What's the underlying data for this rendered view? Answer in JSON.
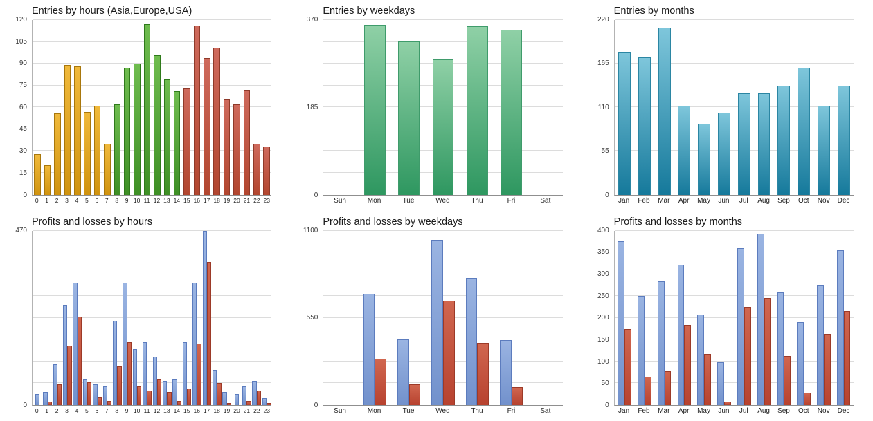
{
  "page": {
    "background": "#ffffff"
  },
  "chart_data": [
    {
      "type": "bar",
      "title": "Entries by hours (Asia,Europe,USA)",
      "categories": [
        "0",
        "1",
        "2",
        "3",
        "4",
        "5",
        "6",
        "7",
        "8",
        "9",
        "10",
        "11",
        "12",
        "13",
        "14",
        "15",
        "16",
        "17",
        "18",
        "19",
        "20",
        "21",
        "22",
        "23"
      ],
      "series": [
        {
          "name": "Entries",
          "values": [
            28,
            20,
            56,
            89,
            88,
            57,
            61,
            35,
            62,
            87,
            90,
            117,
            96,
            79,
            71,
            73,
            116,
            94,
            101,
            66,
            62,
            72,
            35,
            33
          ]
        }
      ],
      "palette": [
        {
          "top": "#F0B93B",
          "bottom": "#D0930F",
          "border": "#A8770C"
        },
        {
          "top": "#6FBC4F",
          "bottom": "#3E8F25",
          "border": "#2F7A1B"
        },
        {
          "top": "#CE6A5C",
          "bottom": "#B2462F",
          "border": "#8E3A2A"
        }
      ],
      "color_index": [
        0,
        0,
        0,
        0,
        0,
        0,
        0,
        0,
        1,
        1,
        1,
        1,
        1,
        1,
        1,
        2,
        2,
        2,
        2,
        2,
        2,
        2,
        2,
        2
      ],
      "ylim": [
        0,
        120
      ],
      "ticks": [
        0,
        15,
        30,
        45,
        60,
        75,
        90,
        105,
        120
      ],
      "grid_divisions": 8,
      "xlabel": "",
      "ylabel": "",
      "legend": "none",
      "grid": "horizontal"
    },
    {
      "type": "bar",
      "title": "Entries by weekdays",
      "categories": [
        "Sun",
        "Mon",
        "Tue",
        "Wed",
        "Thu",
        "Fri",
        "Sat"
      ],
      "series": [
        {
          "name": "Entries",
          "values": [
            0,
            360,
            325,
            287,
            357,
            350,
            0
          ],
          "style": {
            "top": "#8FD0A6",
            "bottom": "#2E9760",
            "border": "#3F9B6B"
          }
        }
      ],
      "ylim": [
        0,
        370
      ],
      "ticks": [
        0,
        185,
        370
      ],
      "grid_divisions": 8,
      "xlabel": "",
      "ylabel": "",
      "legend": "none",
      "grid": "horizontal"
    },
    {
      "type": "bar",
      "title": "Entries by months",
      "categories": [
        "Jan",
        "Feb",
        "Mar",
        "Apr",
        "May",
        "Jun",
        "Jul",
        "Aug",
        "Sep",
        "Oct",
        "Nov",
        "Dec"
      ],
      "series": [
        {
          "name": "Entries",
          "values": [
            180,
            173,
            210,
            112,
            89,
            103,
            128,
            128,
            137,
            160,
            112,
            137
          ],
          "style": {
            "top": "#7EC6DB",
            "bottom": "#15799B",
            "border": "#2B86A3"
          }
        }
      ],
      "ylim": [
        0,
        220
      ],
      "ticks": [
        0,
        55,
        110,
        165,
        220
      ],
      "grid_divisions": 4,
      "xlabel": "",
      "ylabel": "",
      "legend": "none",
      "grid": "horizontal"
    },
    {
      "type": "bar",
      "title": "Profits and losses by hours",
      "categories": [
        "0",
        "1",
        "2",
        "3",
        "4",
        "5",
        "6",
        "7",
        "8",
        "9",
        "10",
        "11",
        "12",
        "13",
        "14",
        "15",
        "16",
        "17",
        "18",
        "19",
        "20",
        "21",
        "22",
        "23"
      ],
      "series": [
        {
          "name": "Profits",
          "values": [
            30,
            35,
            110,
            270,
            330,
            70,
            55,
            50,
            228,
            330,
            150,
            170,
            130,
            65,
            70,
            170,
            330,
            470,
            95,
            35,
            30,
            50,
            65,
            18
          ],
          "style": {
            "top": "#9AB4E2",
            "bottom": "#7291CC",
            "border": "#5C7CBE"
          }
        },
        {
          "name": "Losses",
          "values": [
            0,
            10,
            55,
            160,
            238,
            62,
            20,
            12,
            105,
            170,
            50,
            40,
            70,
            35,
            12,
            45,
            165,
            385,
            60,
            6,
            0,
            12,
            40,
            6
          ],
          "style": {
            "top": "#D0664F",
            "bottom": "#B7422F",
            "border": "#9C3A28"
          }
        }
      ],
      "ylim": [
        0,
        470
      ],
      "ticks": [
        0,
        470
      ],
      "grid_divisions": 8,
      "xlabel": "",
      "ylabel": "",
      "legend": "none",
      "grid": "horizontal"
    },
    {
      "type": "bar",
      "title": "Profits and losses by weekdays",
      "categories": [
        "Sun",
        "Mon",
        "Tue",
        "Wed",
        "Thu",
        "Fri",
        "Sat"
      ],
      "series": [
        {
          "name": "Profits",
          "values": [
            0,
            700,
            415,
            1040,
            800,
            410,
            0
          ],
          "style": {
            "top": "#9AB4E2",
            "bottom": "#7291CC",
            "border": "#5C7CBE"
          }
        },
        {
          "name": "Losses",
          "values": [
            0,
            290,
            130,
            660,
            390,
            115,
            0
          ],
          "style": {
            "top": "#D0664F",
            "bottom": "#B7422F",
            "border": "#9C3A28"
          }
        }
      ],
      "ylim": [
        0,
        1100
      ],
      "ticks": [
        0,
        550,
        1100
      ],
      "grid_divisions": 8,
      "xlabel": "",
      "ylabel": "",
      "legend": "none",
      "grid": "horizontal"
    },
    {
      "type": "bar",
      "title": "Profits and losses by months",
      "categories": [
        "Jan",
        "Feb",
        "Mar",
        "Apr",
        "May",
        "Jun",
        "Jul",
        "Aug",
        "Sep",
        "Oct",
        "Nov",
        "Dec"
      ],
      "series": [
        {
          "name": "Profits",
          "values": [
            375,
            250,
            283,
            322,
            207,
            98,
            360,
            393,
            258,
            190,
            275,
            355
          ],
          "style": {
            "top": "#9AB4E2",
            "bottom": "#7291CC",
            "border": "#5C7CBE"
          }
        },
        {
          "name": "Losses",
          "values": [
            175,
            65,
            78,
            183,
            117,
            8,
            225,
            245,
            112,
            28,
            163,
            215
          ],
          "style": {
            "top": "#D0664F",
            "bottom": "#B7422F",
            "border": "#9C3A28"
          }
        }
      ],
      "ylim": [
        0,
        400
      ],
      "ticks": [
        0,
        50,
        100,
        150,
        200,
        250,
        300,
        350,
        400
      ],
      "grid_divisions": 8,
      "xlabel": "",
      "ylabel": "",
      "legend": "none",
      "grid": "horizontal"
    }
  ]
}
